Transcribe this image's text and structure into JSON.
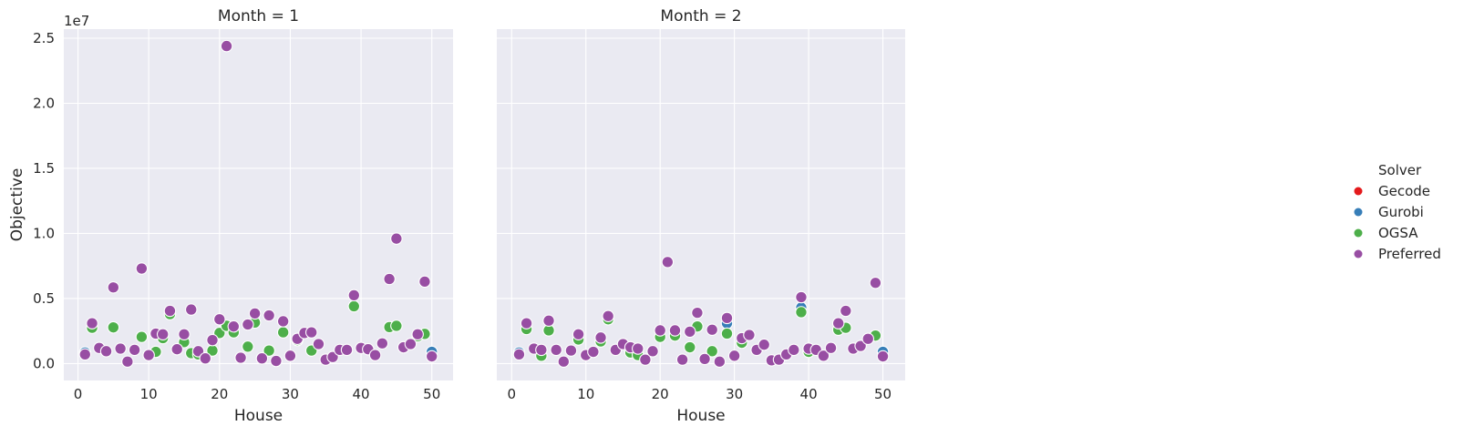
{
  "chart_data": {
    "type": "scatter",
    "facet_prefix": "Month = ",
    "xlabel": "House",
    "ylabel": "Objective",
    "y_offset_label": "1e7",
    "xlim": [
      -2,
      53
    ],
    "ylim": [
      -1300000,
      25700000
    ],
    "x_ticks": [
      0,
      10,
      20,
      30,
      40,
      50
    ],
    "x_tick_labels": [
      "0",
      "10",
      "20",
      "30",
      "40",
      "50"
    ],
    "y_ticks": [
      0,
      5000000,
      10000000,
      15000000,
      20000000,
      25000000
    ],
    "y_tick_labels": [
      "0.0",
      "0.5",
      "1.0",
      "1.5",
      "2.0",
      "2.5"
    ],
    "grid": true,
    "legend": {
      "title": "Solver",
      "placement": "right",
      "entries": [
        {
          "name": "Gecode",
          "color": "#e41a1c"
        },
        {
          "name": "Gurobi",
          "color": "#377eb8"
        },
        {
          "name": "OGSA",
          "color": "#4daf4a"
        },
        {
          "name": "Preferred",
          "color": "#984ea3"
        }
      ]
    },
    "facets": [
      {
        "month": "1",
        "series": [
          {
            "name": "Gurobi",
            "points": [
              [
                1,
                850000
              ],
              [
                50,
                900000
              ]
            ]
          },
          {
            "name": "OGSA",
            "points": [
              [
                2,
                2750000
              ],
              [
                5,
                2780000
              ],
              [
                9,
                2050000
              ],
              [
                11,
                900000
              ],
              [
                12,
                1950000
              ],
              [
                13,
                3800000
              ],
              [
                15,
                1650000
              ],
              [
                16,
                800000
              ],
              [
                17,
                700000
              ],
              [
                19,
                1000000
              ],
              [
                20,
                2350000
              ],
              [
                21,
                2900000
              ],
              [
                22,
                2400000
              ],
              [
                24,
                1300000
              ],
              [
                25,
                3150000
              ],
              [
                27,
                1000000
              ],
              [
                29,
                2400000
              ],
              [
                31,
                1800000
              ],
              [
                33,
                1000000
              ],
              [
                39,
                4400000
              ],
              [
                44,
                2800000
              ],
              [
                45,
                2900000
              ],
              [
                48,
                2100000
              ],
              [
                49,
                2280000
              ]
            ]
          },
          {
            "name": "Preferred",
            "points": [
              [
                1,
                700000
              ],
              [
                2,
                3100000
              ],
              [
                3,
                1200000
              ],
              [
                4,
                950000
              ],
              [
                5,
                5850000
              ],
              [
                6,
                1150000
              ],
              [
                7,
                150000
              ],
              [
                8,
                1050000
              ],
              [
                9,
                7300000
              ],
              [
                10,
                650000
              ],
              [
                11,
                2300000
              ],
              [
                12,
                2250000
              ],
              [
                13,
                4050000
              ],
              [
                14,
                1100000
              ],
              [
                15,
                2250000
              ],
              [
                16,
                4150000
              ],
              [
                17,
                950000
              ],
              [
                18,
                400000
              ],
              [
                19,
                1800000
              ],
              [
                20,
                3400000
              ],
              [
                21,
                24400000
              ],
              [
                22,
                2850000
              ],
              [
                23,
                450000
              ],
              [
                24,
                3000000
              ],
              [
                25,
                3850000
              ],
              [
                26,
                400000
              ],
              [
                27,
                3700000
              ],
              [
                28,
                200000
              ],
              [
                29,
                3250000
              ],
              [
                30,
                600000
              ],
              [
                31,
                1900000
              ],
              [
                32,
                2350000
              ],
              [
                33,
                2400000
              ],
              [
                34,
                1500000
              ],
              [
                35,
                300000
              ],
              [
                36,
                500000
              ],
              [
                37,
                1050000
              ],
              [
                38,
                1050000
              ],
              [
                39,
                5250000
              ],
              [
                40,
                1200000
              ],
              [
                41,
                1100000
              ],
              [
                42,
                650000
              ],
              [
                43,
                1550000
              ],
              [
                44,
                6500000
              ],
              [
                45,
                9600000
              ],
              [
                46,
                1250000
              ],
              [
                47,
                1500000
              ],
              [
                48,
                2250000
              ],
              [
                49,
                6300000
              ],
              [
                50,
                550000
              ]
            ]
          }
        ]
      },
      {
        "month": "2",
        "series": [
          {
            "name": "Gurobi",
            "points": [
              [
                1,
                850000
              ],
              [
                29,
                3100000
              ],
              [
                39,
                4300000
              ],
              [
                50,
                900000
              ]
            ]
          },
          {
            "name": "OGSA",
            "points": [
              [
                2,
                2650000
              ],
              [
                4,
                600000
              ],
              [
                5,
                2550000
              ],
              [
                9,
                1850000
              ],
              [
                12,
                1700000
              ],
              [
                13,
                3400000
              ],
              [
                16,
                850000
              ],
              [
                17,
                650000
              ],
              [
                20,
                2050000
              ],
              [
                22,
                2150000
              ],
              [
                24,
                1250000
              ],
              [
                25,
                2850000
              ],
              [
                27,
                950000
              ],
              [
                29,
                2300000
              ],
              [
                31,
                1600000
              ],
              [
                39,
                3950000
              ],
              [
                40,
                900000
              ],
              [
                44,
                2600000
              ],
              [
                45,
                2750000
              ],
              [
                49,
                2150000
              ]
            ]
          },
          {
            "name": "Preferred",
            "points": [
              [
                1,
                700000
              ],
              [
                2,
                3100000
              ],
              [
                3,
                1150000
              ],
              [
                4,
                1050000
              ],
              [
                5,
                3300000
              ],
              [
                6,
                1050000
              ],
              [
                7,
                150000
              ],
              [
                8,
                1000000
              ],
              [
                9,
                2250000
              ],
              [
                10,
                650000
              ],
              [
                11,
                900000
              ],
              [
                12,
                2000000
              ],
              [
                13,
                3650000
              ],
              [
                14,
                1050000
              ],
              [
                15,
                1500000
              ],
              [
                16,
                1250000
              ],
              [
                17,
                1150000
              ],
              [
                18,
                300000
              ],
              [
                19,
                950000
              ],
              [
                20,
                2550000
              ],
              [
                21,
                7800000
              ],
              [
                22,
                2550000
              ],
              [
                23,
                300000
              ],
              [
                24,
                2450000
              ],
              [
                25,
                3900000
              ],
              [
                26,
                350000
              ],
              [
                27,
                2600000
              ],
              [
                28,
                150000
              ],
              [
                29,
                3500000
              ],
              [
                30,
                600000
              ],
              [
                31,
                1950000
              ],
              [
                32,
                2200000
              ],
              [
                33,
                1050000
              ],
              [
                34,
                1450000
              ],
              [
                35,
                250000
              ],
              [
                36,
                300000
              ],
              [
                37,
                700000
              ],
              [
                38,
                1050000
              ],
              [
                39,
                5100000
              ],
              [
                40,
                1150000
              ],
              [
                41,
                1050000
              ],
              [
                42,
                600000
              ],
              [
                43,
                1200000
              ],
              [
                44,
                3100000
              ],
              [
                45,
                4050000
              ],
              [
                46,
                1150000
              ],
              [
                47,
                1350000
              ],
              [
                48,
                1900000
              ],
              [
                49,
                6200000
              ],
              [
                50,
                550000
              ]
            ]
          }
        ]
      }
    ]
  }
}
